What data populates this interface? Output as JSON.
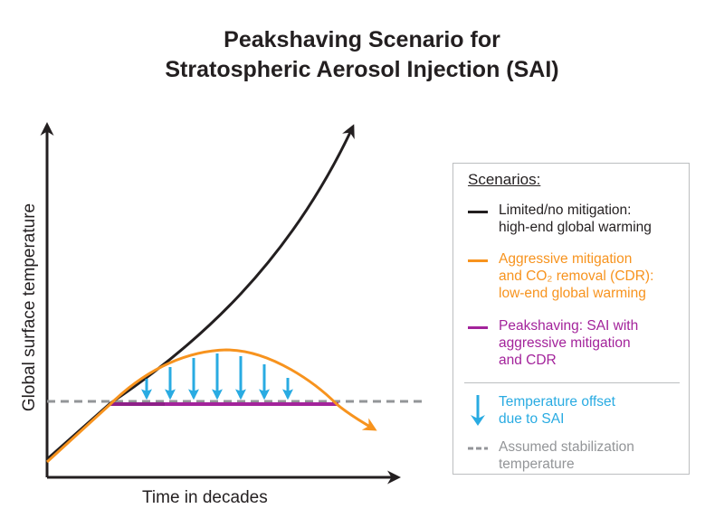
{
  "title": {
    "line1": "Peakshaving Scenario for",
    "line2": "Stratospheric Aerosol Injection (SAI)"
  },
  "axes": {
    "ylabel": "Global surface temperature",
    "xlabel": "Time in decades"
  },
  "colors": {
    "black": "#231f20",
    "orange": "#f7931e",
    "purple": "#a3239b",
    "blue": "#29abe2",
    "gray": "#939598"
  },
  "legend": {
    "title": "Scenarios:",
    "items": [
      {
        "key": "limited",
        "line1": "Limited/no mitigation:",
        "line2": "high-end global warming",
        "line3": ""
      },
      {
        "key": "aggressive",
        "line1": "Aggressive mitigation",
        "line2": "and CO₂ removal (CDR):",
        "line3": "low-end global warming"
      },
      {
        "key": "peakshaving",
        "line1": "Peakshaving: SAI with",
        "line2": "aggressive mitigation",
        "line3": "and CDR"
      },
      {
        "key": "offset",
        "line1": "Temperature offset",
        "line2": "due to SAI",
        "line3": ""
      },
      {
        "key": "stabilization",
        "line1": "Assumed stabilization",
        "line2": "temperature",
        "line3": ""
      }
    ]
  }
}
